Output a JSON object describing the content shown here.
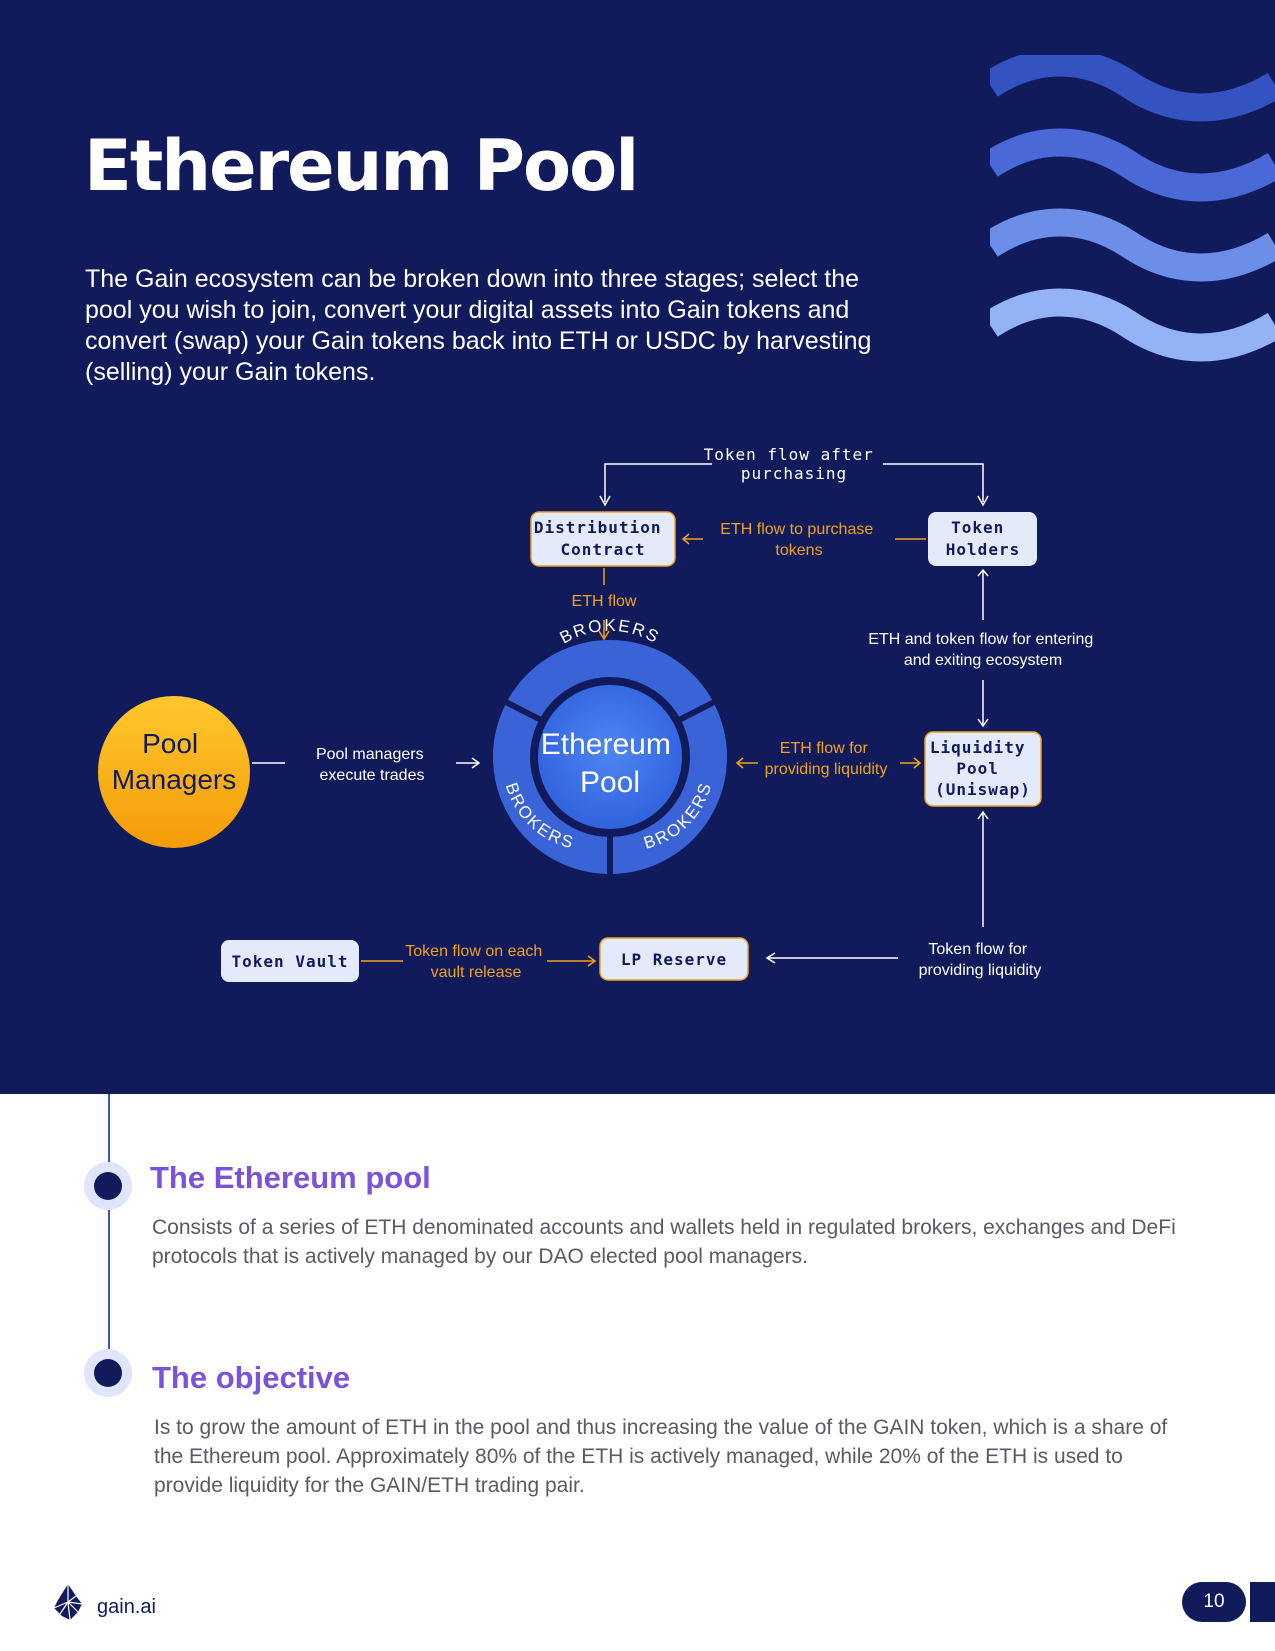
{
  "header": {
    "title": "Ethereum Pool",
    "intro": "The Gain ecosystem can be broken down into three stages; select the pool you wish to join, convert your digital assets into Gain tokens and convert (swap) your Gain tokens back into ETH or USDC by harvesting (selling) your Gain tokens."
  },
  "diagram": {
    "token_flow_after": [
      "Token flow after",
      "purchasing"
    ],
    "distribution_contract": [
      "Distribution",
      "Contract"
    ],
    "token_holders": [
      "Token",
      "Holders"
    ],
    "eth_flow_purchase": [
      "ETH flow to purchase",
      "tokens"
    ],
    "eth_flow": "ETH flow",
    "eth_token_flow": [
      "ETH and token flow for entering",
      "and exiting ecosystem"
    ],
    "pool_managers": [
      "Pool",
      "Managers"
    ],
    "pool_managers_trade": [
      "Pool managers",
      "execute trades"
    ],
    "ethereum_pool": [
      "Ethereum",
      "Pool"
    ],
    "brokers": "BROKERS",
    "eth_flow_liquidity": [
      "ETH flow for",
      "providing liquidity"
    ],
    "liquidity_pool": [
      "Liquidity",
      "Pool",
      "(Uniswap)"
    ],
    "token_vault": "Token Vault",
    "vault_release": [
      "Token flow on each",
      "vault release"
    ],
    "lp_reserve": "LP Reserve",
    "token_flow_liquidity": [
      "Token flow for",
      "providing liquidity"
    ]
  },
  "sections": [
    {
      "heading": "The Ethereum pool",
      "body": "Consists of a series of ETH denominated accounts and wallets held in regulated brokers, exchanges and DeFi protocols that is actively managed by our DAO elected pool managers."
    },
    {
      "heading": "The objective",
      "body": "Is to grow the amount of ETH in the pool and thus increasing the value of the GAIN token, which is a share of the Ethereum pool. Approximately 80% of the ETH is actively managed, while 20% of the ETH is used to provide liquidity for the GAIN/ETH trading pair."
    }
  ],
  "footer": {
    "brand": "gain.ai",
    "page_number": "10",
    "logo_icon": "gain-logo-icon"
  },
  "colors": {
    "navy": "#111b5c",
    "orange": "#f0a21c",
    "purple": "#7a52dc",
    "pool_blue": "#3b6fe6",
    "box_fill": "#e3ebfb"
  }
}
